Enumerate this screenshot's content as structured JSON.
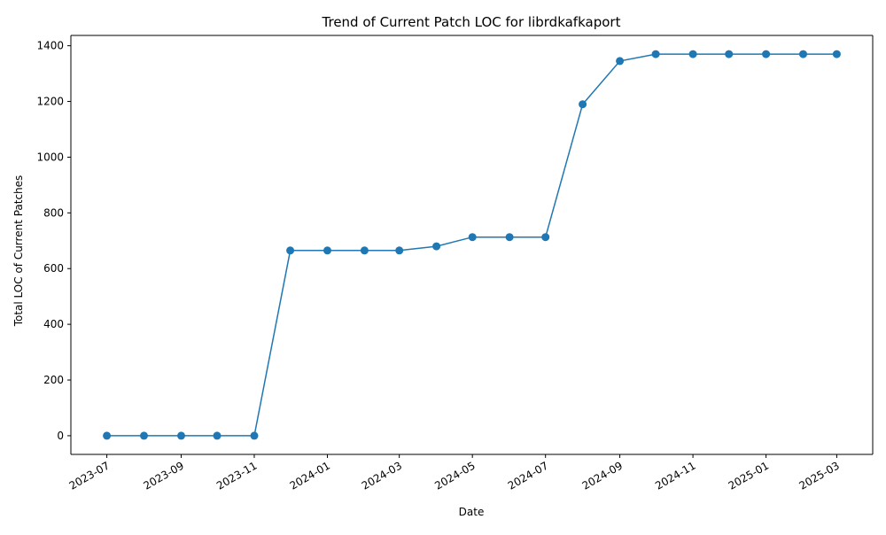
{
  "chart_data": {
    "type": "line",
    "title": "Trend of Current Patch LOC for librdkafkaport",
    "xlabel": "Date",
    "ylabel": "Total LOC of Current Patches",
    "x_ticks": [
      "2023-07",
      "2023-09",
      "2023-11",
      "2024-01",
      "2024-03",
      "2024-05",
      "2024-07",
      "2024-09",
      "2024-11",
      "2025-01",
      "2025-03"
    ],
    "y_ticks": [
      0,
      200,
      400,
      600,
      800,
      1000,
      1200,
      1400
    ],
    "ylim": [
      -67,
      1437
    ],
    "xlim": [
      "2023-06-01",
      "2025-03-31"
    ],
    "grid": false,
    "legend": "none",
    "series": [
      {
        "color": "#1f77b4",
        "marker": "circle",
        "x": [
          "2023-07-01",
          "2023-08-01",
          "2023-09-01",
          "2023-10-01",
          "2023-11-01",
          "2023-12-01",
          "2024-01-01",
          "2024-02-01",
          "2024-03-01",
          "2024-04-01",
          "2024-05-01",
          "2024-06-01",
          "2024-07-01",
          "2024-08-01",
          "2024-09-01",
          "2024-10-01",
          "2024-11-01",
          "2024-12-01",
          "2025-01-01",
          "2025-02-01",
          "2025-03-01"
        ],
        "y": [
          0,
          0,
          0,
          0,
          0,
          665,
          665,
          665,
          665,
          680,
          713,
          713,
          713,
          1190,
          1345,
          1370,
          1370,
          1370,
          1370,
          1370,
          1370
        ]
      }
    ]
  }
}
